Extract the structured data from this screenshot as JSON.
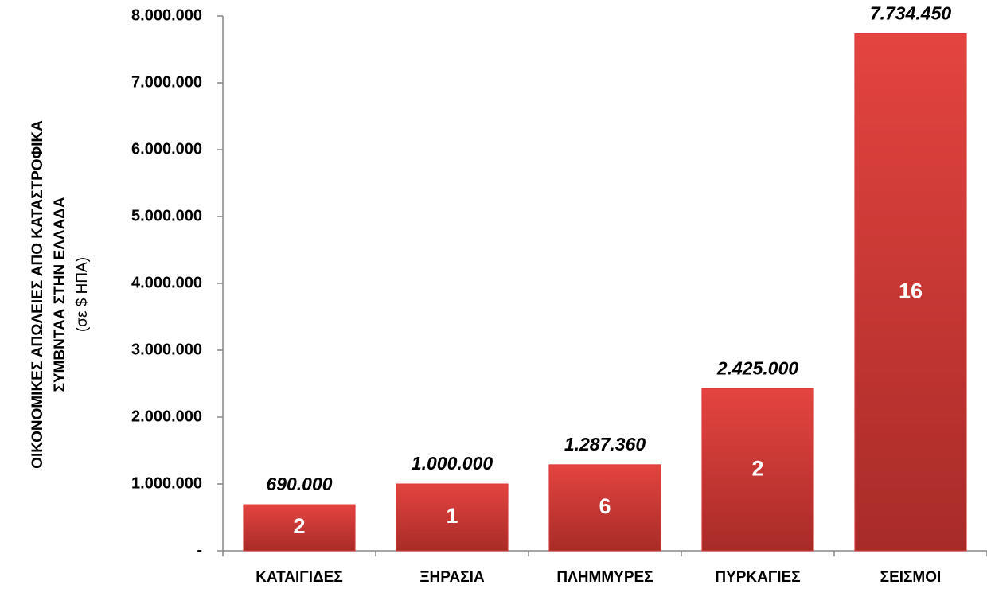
{
  "chart_data": {
    "type": "bar",
    "y_label": [
      "ΟΙΚΟΝΟΜΙΚΕΣ ΑΠΩΛΕΙΕΣ ΑΠΟ ΚΑΤΑΣΤΡΟΦΙΚΑ",
      "ΣΥΜΒΝΤΑΑ ΣΤΗΝ ΕΛΛΑΔΑ",
      "(σε $ ΗΠΑ)"
    ],
    "categories": [
      "ΚΑΤΑΙΓΙΔΕΣ",
      "ΞΗΡΑΣΙΑ",
      "ΠΛΗΜΜΥΡΕΣ",
      "ΠΥΡΚΑΓΙΕΣ",
      "ΣΕΙΣΜΟΙ"
    ],
    "values": [
      690000,
      1000000,
      1287360,
      2425000,
      7734450
    ],
    "value_labels": [
      "690.000",
      "1.000.000",
      "1.287.360",
      "2.425.000",
      "7.734.450"
    ],
    "event_counts": [
      2,
      1,
      6,
      2,
      16
    ],
    "color": "#d93a36",
    "ylim": [
      0,
      8000000
    ],
    "yticks": [
      {
        "value": 0,
        "label": "-"
      },
      {
        "value": 1000000,
        "label": "1.000.000"
      },
      {
        "value": 2000000,
        "label": "2.000.000"
      },
      {
        "value": 3000000,
        "label": "3.000.000"
      },
      {
        "value": 4000000,
        "label": "4.000.000"
      },
      {
        "value": 5000000,
        "label": "5.000.000"
      },
      {
        "value": 6000000,
        "label": "6.000.000"
      },
      {
        "value": 7000000,
        "label": "7.000.000"
      },
      {
        "value": 8000000,
        "label": "8.000.000"
      }
    ],
    "grid": false
  }
}
